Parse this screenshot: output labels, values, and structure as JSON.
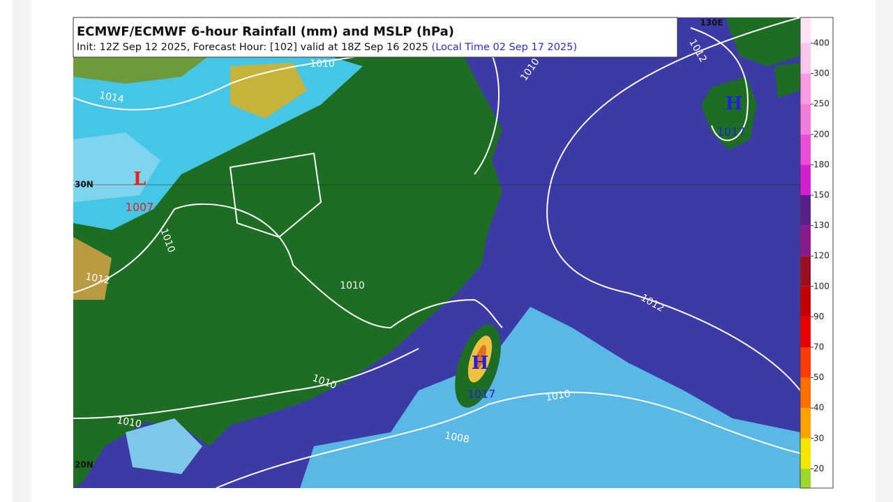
{
  "header": {
    "title": "ECMWF/ECMWF 6-hour Rainfall (mm) and MSLP (hPa)",
    "subtitle": "Init: 12Z Sep 12 2025, Forecast Hour: [102] valid at 18Z Sep 16 2025",
    "local_time": "(Local Time 02 Sep 17 2025)"
  },
  "map": {
    "pressure_centers": [
      {
        "symbol": "L",
        "value": "1007"
      },
      {
        "symbol": "H",
        "value": "1017"
      },
      {
        "symbol": "H",
        "value": "1017"
      }
    ],
    "contour_labels": [
      "1010",
      "1014",
      "1010",
      "1012",
      "1010",
      "1010",
      "1010",
      "1010",
      "1012",
      "1012",
      "1010",
      "1008"
    ],
    "grid_labels": [
      "30N",
      "130E",
      "20N"
    ]
  },
  "colorbar": {
    "ticks": [
      400,
      300,
      250,
      200,
      180,
      150,
      130,
      120,
      100,
      90,
      70,
      50,
      40,
      30,
      20
    ]
  }
}
